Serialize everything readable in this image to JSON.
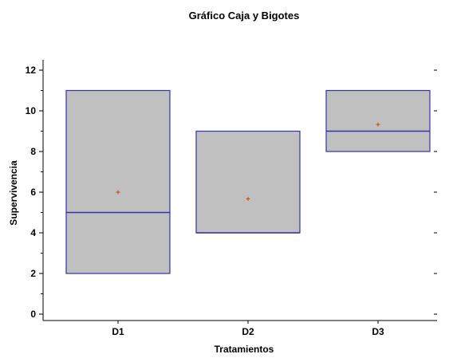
{
  "chart_data": {
    "type": "box",
    "title": "Gráfico Caja y Bigotes",
    "xlabel": "Tratamientos",
    "ylabel": "Supervivencia",
    "categories": [
      "D1",
      "D2",
      "D3"
    ],
    "ylim": [
      -0.5,
      12.5
    ],
    "yticks": [
      "0",
      "2",
      "4",
      "6",
      "8",
      "10",
      "12"
    ],
    "boxes": [
      {
        "category": "D1",
        "q1": 2,
        "median": 5,
        "q3": 11,
        "mean": 6.0
      },
      {
        "category": "D2",
        "q1": 4,
        "median": 4,
        "q3": 9,
        "mean": 5.67
      },
      {
        "category": "D3",
        "q1": 8,
        "median": 9,
        "q3": 11,
        "mean": 9.33
      }
    ],
    "grid": false,
    "legend": "none",
    "colors": {
      "box_fill": "#c0c0c0",
      "box_stroke": "#3333aa",
      "mean_marker": "#cc4400",
      "axis": "#000000",
      "background": "#ffffff"
    }
  }
}
